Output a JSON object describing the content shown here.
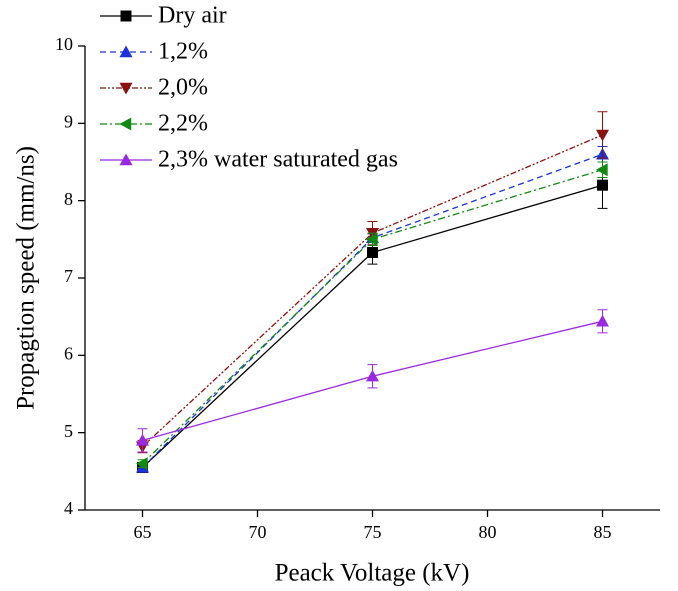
{
  "chart_data": {
    "type": "line",
    "x_label": "Peack Voltage (kV)",
    "y_label": "Propagtion speed (mm/ns)",
    "x": [
      65,
      75,
      85
    ],
    "series": [
      {
        "name": "Dry air",
        "color": "#000000",
        "marker": "square",
        "dash": "solid",
        "values": [
          4.55,
          7.33,
          8.2
        ],
        "errors": [
          0.05,
          0.15,
          0.3
        ]
      },
      {
        "name": "1,2%",
        "color": "#1a32d8",
        "marker": "triangle-up",
        "dash": "dashed",
        "values": [
          4.55,
          7.52,
          8.6
        ],
        "errors": [
          0.05,
          0.05,
          0.1
        ]
      },
      {
        "name": "2,0%",
        "color": "#8b1010",
        "marker": "triangle-down",
        "dash": "dash-dot-dot",
        "values": [
          4.82,
          7.58,
          8.85
        ],
        "errors": [
          0.08,
          0.15,
          0.3
        ]
      },
      {
        "name": "2,2%",
        "color": "#128a12",
        "marker": "triangle-left",
        "dash": "dash-dot",
        "values": [
          4.6,
          7.5,
          8.4
        ],
        "errors": [
          0.05,
          0.08,
          0.1
        ]
      },
      {
        "name": "2,3% water saturated gas",
        "color": "#9a28e0",
        "marker": "triangle-up",
        "dash": "solid",
        "values": [
          4.9,
          5.73,
          6.44
        ],
        "errors": [
          0.15,
          0.15,
          0.15
        ]
      }
    ],
    "xlim": [
      62.5,
      87.5
    ],
    "xticks": [
      65,
      70,
      75,
      80,
      85
    ],
    "ylim": [
      4,
      10
    ],
    "yticks": [
      4,
      5,
      6,
      7,
      8,
      9,
      10
    ],
    "legend": "upper left"
  }
}
